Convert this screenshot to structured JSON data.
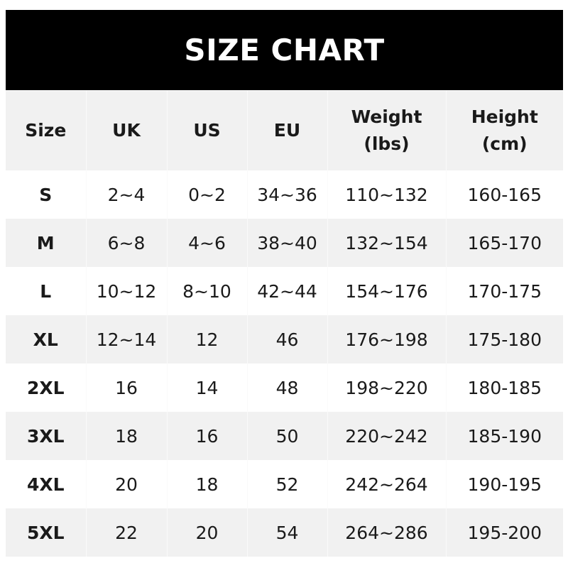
{
  "title": "SIZE CHART",
  "headers": [
    "Size",
    "UK",
    "US",
    "EU",
    "Weight\n(lbs)",
    "Height\n(cm)"
  ],
  "header_lines": [
    [
      "Size"
    ],
    [
      "UK"
    ],
    [
      "US"
    ],
    [
      "EU"
    ],
    [
      "Weight",
      "(lbs)"
    ],
    [
      "Height",
      "(cm)"
    ]
  ],
  "rows": [
    [
      "S",
      "2~4",
      "0~2",
      "34~36",
      "110~132",
      "160-165"
    ],
    [
      "M",
      "6~8",
      "4~6",
      "38~40",
      "132~154",
      "165-170"
    ],
    [
      "L",
      "10~12",
      "8~10",
      "42~44",
      "154~176",
      "170-175"
    ],
    [
      "XL",
      "12~14",
      "12",
      "46",
      "176~198",
      "175-180"
    ],
    [
      "2XL",
      "16",
      "14",
      "48",
      "198~220",
      "180-185"
    ],
    [
      "3XL",
      "18",
      "16",
      "50",
      "220~242",
      "185-190"
    ],
    [
      "4XL",
      "20",
      "18",
      "52",
      "242~264",
      "190-195"
    ],
    [
      "5XL",
      "22",
      "20",
      "54",
      "264~286",
      "195-200"
    ]
  ],
  "colors": {
    "title_bg": "#000000",
    "title_text": "#ffffff",
    "stripe": "#f1f1f1",
    "text": "#1a1a1a"
  }
}
